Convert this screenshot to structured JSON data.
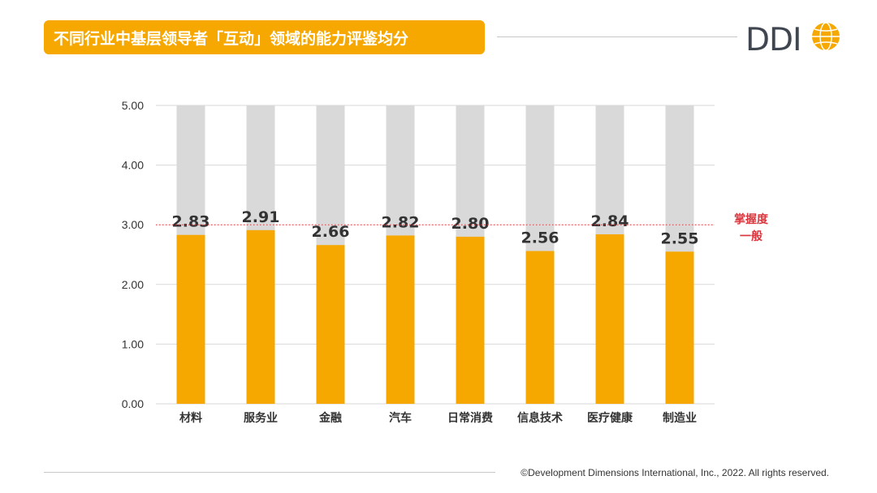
{
  "title": "不同行业中基层领导者「互动」领域的能力评鉴均分",
  "brand": {
    "logo_text": "DDI",
    "accent_color": "#F6A800",
    "logo_text_color": "#3f4650"
  },
  "footer": {
    "copyright": "©Development Dimensions International, Inc., 2022. All rights reserved."
  },
  "chart_data": {
    "type": "bar",
    "categories": [
      "材料",
      "服务业",
      "金融",
      "汽车",
      "日常消费",
      "信息技术",
      "医疗健康",
      "制造业"
    ],
    "values": [
      2.83,
      2.91,
      2.66,
      2.82,
      2.8,
      2.56,
      2.84,
      2.55
    ],
    "value_labels": [
      "2.83",
      "2.91",
      "2.66",
      "2.82",
      "2.80",
      "2.56",
      "2.84",
      "2.55"
    ],
    "ylim": [
      0,
      5
    ],
    "yticks": [
      "0.00",
      "1.00",
      "2.00",
      "3.00",
      "4.00",
      "5.00"
    ],
    "background_bar_max": 5,
    "bar_color": "#F6A800",
    "background_bar_color": "#d9d9d9",
    "grid": true,
    "reference_line": {
      "value": 3.0,
      "label_lines": [
        "掌握度",
        "一般"
      ],
      "color": "#d9363e"
    }
  }
}
